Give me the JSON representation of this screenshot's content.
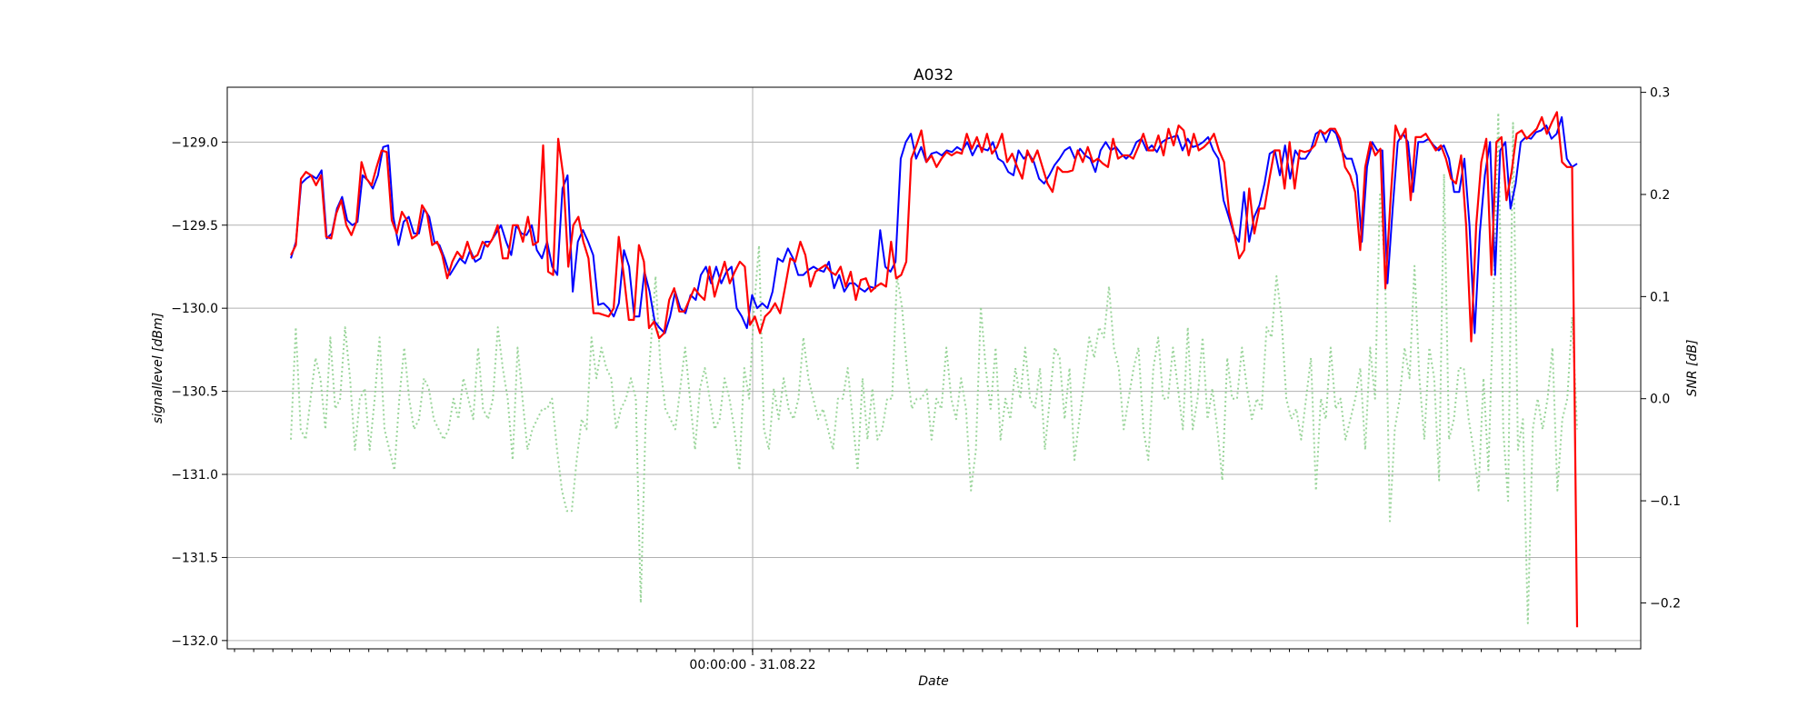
{
  "chart_data": {
    "type": "line",
    "title": "A032",
    "xlabel": "Date",
    "ylabel": "signallevel [dBm]",
    "ylabel_right": "SNR [dB]",
    "x_tick_label": "00:00:00 - 31.08.22",
    "ylim": [
      -132.05,
      -128.67
    ],
    "ylim_right": [
      -0.245,
      0.305
    ],
    "y_ticks": [
      -132.0,
      -131.5,
      -131.0,
      -130.5,
      -130.0,
      -129.5,
      -129.0
    ],
    "y_ticks_right": [
      -0.2,
      -0.1,
      0.0,
      0.1,
      0.2,
      0.3
    ],
    "grid": true,
    "colors": {
      "series_blue": "#0000ff",
      "series_red": "#ff0000",
      "series_snr": "#90d090",
      "grid": "#b0b0b0"
    },
    "series": [
      {
        "key": "blue",
        "values": [
          -129.7,
          -129.6,
          -129.25,
          -129.22,
          -129.2,
          -129.22,
          -129.17,
          -129.58,
          -129.55,
          -129.4,
          -129.33,
          -129.47,
          -129.5,
          -129.48,
          -129.2,
          -129.23,
          -129.28,
          -129.2,
          -129.03,
          -129.02,
          -129.45,
          -129.62,
          -129.48,
          -129.45,
          -129.55,
          -129.55,
          -129.4,
          -129.45,
          -129.6,
          -129.62,
          -129.7,
          -129.8,
          -129.75,
          -129.7,
          -129.73,
          -129.65,
          -129.72,
          -129.7,
          -129.6,
          -129.6,
          -129.55,
          -129.5,
          -129.6,
          -129.68,
          -129.5,
          -129.55,
          -129.56,
          -129.5,
          -129.65,
          -129.7,
          -129.6,
          -129.75,
          -129.8,
          -129.28,
          -129.2,
          -129.9,
          -129.6,
          -129.53,
          -129.6,
          -129.68,
          -129.98,
          -129.97,
          -130.0,
          -130.05,
          -129.97,
          -129.65,
          -129.75,
          -130.05,
          -130.05,
          -129.78,
          -129.9,
          -130.08,
          -130.12,
          -130.15,
          -130.05,
          -129.9,
          -130.0,
          -130.03,
          -129.92,
          -129.95,
          -129.8,
          -129.75,
          -129.85,
          -129.75,
          -129.85,
          -129.78,
          -129.75,
          -130.0,
          -130.05,
          -130.12,
          -129.92,
          -130.0,
          -129.97,
          -130.0,
          -129.9,
          -129.7,
          -129.72,
          -129.64,
          -129.7,
          -129.8,
          -129.8,
          -129.77,
          -129.75,
          -129.77,
          -129.78,
          -129.72,
          -129.88,
          -129.8,
          -129.9,
          -129.85,
          -129.85,
          -129.88,
          -129.9,
          -129.87,
          -129.88,
          -129.53,
          -129.75,
          -129.78,
          -129.72,
          -129.1,
          -129.0,
          -128.95,
          -129.1,
          -129.03,
          -129.12,
          -129.07,
          -129.06,
          -129.08,
          -129.05,
          -129.06,
          -129.03,
          -129.05,
          -129.0,
          -129.08,
          -129.02,
          -129.04,
          -129.05,
          -129.0,
          -129.1,
          -129.12,
          -129.18,
          -129.2,
          -129.05,
          -129.1,
          -129.07,
          -129.12,
          -129.22,
          -129.25,
          -129.2,
          -129.14,
          -129.1,
          -129.05,
          -129.03,
          -129.1,
          -129.04,
          -129.08,
          -129.1,
          -129.18,
          -129.05,
          -129.0,
          -129.05,
          -129.03,
          -129.07,
          -129.1,
          -129.07,
          -129.0,
          -128.98,
          -129.05,
          -129.02,
          -129.06,
          -129.0,
          -128.98,
          -128.97,
          -128.96,
          -129.05,
          -128.98,
          -129.03,
          -129.02,
          -129.0,
          -128.97,
          -129.05,
          -129.1,
          -129.35,
          -129.45,
          -129.55,
          -129.6,
          -129.3,
          -129.6,
          -129.45,
          -129.38,
          -129.25,
          -129.07,
          -129.05,
          -129.2,
          -129.02,
          -129.22,
          -129.05,
          -129.1,
          -129.1,
          -129.05,
          -128.95,
          -128.93,
          -129.0,
          -128.92,
          -128.95,
          -129.05,
          -129.1,
          -129.1,
          -129.2,
          -129.6,
          -129.15,
          -129.0,
          -129.05,
          -129.05,
          -129.85,
          -129.4,
          -129.0,
          -128.95,
          -129.0,
          -129.3,
          -129.0,
          -129.0,
          -128.98,
          -129.02,
          -129.05,
          -129.02,
          -129.1,
          -129.3,
          -129.3,
          -129.1,
          -129.5,
          -130.15,
          -129.55,
          -129.2,
          -129.0,
          -129.8,
          -129.05,
          -129.0,
          -129.4,
          -129.25,
          -129.0,
          -128.97,
          -128.98,
          -128.94,
          -128.93,
          -128.9,
          -128.98,
          -128.95,
          -128.85,
          -129.1,
          -129.15,
          -129.13
        ]
      },
      {
        "key": "red",
        "values": [
          -129.68,
          -129.62,
          -129.22,
          -129.18,
          -129.2,
          -129.26,
          -129.2,
          -129.57,
          -129.58,
          -129.43,
          -129.35,
          -129.5,
          -129.56,
          -129.48,
          -129.12,
          -129.22,
          -129.26,
          -129.15,
          -129.05,
          -129.06,
          -129.47,
          -129.55,
          -129.42,
          -129.47,
          -129.58,
          -129.56,
          -129.38,
          -129.43,
          -129.62,
          -129.6,
          -129.68,
          -129.82,
          -129.72,
          -129.66,
          -129.7,
          -129.6,
          -129.7,
          -129.68,
          -129.6,
          -129.63,
          -129.58,
          -129.5,
          -129.7,
          -129.7,
          -129.5,
          -129.5,
          -129.6,
          -129.45,
          -129.62,
          -129.6,
          -129.02,
          -129.78,
          -129.8,
          -128.98,
          -129.2,
          -129.75,
          -129.5,
          -129.45,
          -129.6,
          -129.7,
          -130.03,
          -130.03,
          -130.04,
          -130.05,
          -130.0,
          -129.57,
          -129.8,
          -130.07,
          -130.07,
          -129.62,
          -129.72,
          -130.12,
          -130.08,
          -130.18,
          -130.15,
          -129.95,
          -129.88,
          -130.02,
          -130.02,
          -129.95,
          -129.88,
          -129.92,
          -129.95,
          -129.75,
          -129.93,
          -129.82,
          -129.72,
          -129.85,
          -129.78,
          -129.72,
          -129.75,
          -130.1,
          -130.05,
          -130.15,
          -130.05,
          -130.02,
          -129.97,
          -130.03,
          -129.87,
          -129.7,
          -129.72,
          -129.6,
          -129.68,
          -129.87,
          -129.78,
          -129.76,
          -129.74,
          -129.78,
          -129.8,
          -129.75,
          -129.87,
          -129.78,
          -129.95,
          -129.83,
          -129.82,
          -129.9,
          -129.87,
          -129.85,
          -129.87,
          -129.6,
          -129.82,
          -129.8,
          -129.72,
          -129.1,
          -129.02,
          -128.93,
          -129.12,
          -129.08,
          -129.15,
          -129.1,
          -129.06,
          -129.08,
          -129.06,
          -129.07,
          -128.95,
          -129.04,
          -128.97,
          -129.06,
          -128.95,
          -129.07,
          -129.03,
          -128.95,
          -129.12,
          -129.07,
          -129.15,
          -129.22,
          -129.05,
          -129.12,
          -129.05,
          -129.15,
          -129.25,
          -129.3,
          -129.15,
          -129.18,
          -129.18,
          -129.17,
          -129.05,
          -129.12,
          -129.03,
          -129.12,
          -129.1,
          -129.13,
          -129.15,
          -128.98,
          -129.1,
          -129.08,
          -129.08,
          -129.1,
          -129.03,
          -128.95,
          -129.05,
          -129.05,
          -128.96,
          -129.08,
          -128.92,
          -129.02,
          -128.9,
          -128.93,
          -129.08,
          -128.95,
          -129.05,
          -129.03,
          -129.0,
          -128.95,
          -129.05,
          -129.12,
          -129.42,
          -129.55,
          -129.7,
          -129.65,
          -129.28,
          -129.55,
          -129.4,
          -129.4,
          -129.22,
          -129.05,
          -129.05,
          -129.28,
          -129.0,
          -129.28,
          -129.05,
          -129.06,
          -129.05,
          -129.02,
          -128.93,
          -128.95,
          -128.92,
          -128.92,
          -128.98,
          -129.15,
          -129.2,
          -129.3,
          -129.65,
          -129.15,
          -129.0,
          -129.08,
          -129.04,
          -129.88,
          -129.35,
          -128.9,
          -128.98,
          -128.92,
          -129.35,
          -128.97,
          -128.97,
          -128.95,
          -129.0,
          -129.05,
          -129.02,
          -129.1,
          -129.22,
          -129.25,
          -129.08,
          -129.5,
          -130.2,
          -129.5,
          -129.12,
          -128.98,
          -129.8,
          -129.0,
          -128.97,
          -129.35,
          -129.18,
          -128.95,
          -128.93,
          -128.98,
          -128.95,
          -128.92,
          -128.85,
          -128.95,
          -128.88,
          -128.82,
          -129.12,
          -129.15,
          -129.15,
          -131.92
        ]
      },
      {
        "key": "snr",
        "values": [
          -0.04,
          0.07,
          -0.03,
          -0.04,
          0.0,
          0.04,
          0.02,
          -0.03,
          0.06,
          -0.01,
          0.0,
          0.07,
          0.02,
          -0.05,
          0.0,
          0.01,
          -0.05,
          0.0,
          0.06,
          -0.03,
          -0.05,
          -0.07,
          0.0,
          0.05,
          0.0,
          -0.03,
          -0.02,
          0.02,
          0.01,
          -0.02,
          -0.03,
          -0.04,
          -0.03,
          0.0,
          -0.02,
          0.02,
          0.0,
          -0.02,
          0.05,
          -0.01,
          -0.02,
          0.0,
          0.07,
          0.03,
          0.0,
          -0.06,
          0.05,
          0.0,
          -0.05,
          -0.03,
          -0.02,
          -0.01,
          -0.01,
          0.0,
          -0.05,
          -0.09,
          -0.11,
          -0.11,
          -0.06,
          -0.02,
          -0.03,
          0.06,
          0.02,
          0.05,
          0.03,
          0.02,
          -0.03,
          -0.01,
          0.0,
          0.02,
          0.0,
          -0.2,
          -0.02,
          0.05,
          0.12,
          0.03,
          -0.01,
          -0.02,
          -0.03,
          0.01,
          0.05,
          0.0,
          -0.05,
          0.01,
          0.03,
          0.0,
          -0.03,
          -0.02,
          0.02,
          0.0,
          -0.03,
          -0.07,
          0.03,
          0.0,
          0.09,
          0.15,
          -0.03,
          -0.05,
          0.01,
          -0.02,
          0.02,
          -0.01,
          -0.02,
          0.0,
          0.06,
          0.02,
          0.0,
          -0.02,
          -0.01,
          -0.03,
          -0.05,
          0.0,
          0.0,
          0.03,
          -0.02,
          -0.07,
          0.02,
          -0.04,
          0.01,
          -0.04,
          -0.03,
          0.0,
          0.0,
          0.12,
          0.09,
          0.03,
          -0.01,
          0.0,
          0.0,
          0.01,
          -0.04,
          0.0,
          -0.01,
          0.05,
          0.0,
          -0.02,
          0.02,
          -0.01,
          -0.09,
          -0.05,
          0.09,
          0.03,
          -0.01,
          0.05,
          -0.04,
          0.0,
          -0.02,
          0.03,
          0.0,
          0.05,
          0.0,
          -0.01,
          0.03,
          -0.05,
          0.0,
          0.05,
          0.04,
          -0.02,
          0.03,
          -0.06,
          -0.02,
          0.02,
          0.06,
          0.04,
          0.07,
          0.06,
          0.11,
          0.05,
          0.03,
          -0.03,
          0.0,
          0.03,
          0.05,
          -0.03,
          -0.06,
          0.03,
          0.06,
          0.0,
          0.0,
          0.05,
          0.01,
          -0.03,
          0.07,
          -0.03,
          0.0,
          0.06,
          -0.02,
          0.01,
          -0.03,
          -0.08,
          0.04,
          0.0,
          0.0,
          0.05,
          0.01,
          -0.02,
          0.0,
          -0.01,
          0.07,
          0.06,
          0.12,
          0.08,
          0.0,
          -0.02,
          -0.01,
          -0.04,
          0.0,
          0.04,
          -0.09,
          0.0,
          -0.02,
          0.05,
          -0.01,
          0.0,
          -0.04,
          -0.02,
          0.0,
          0.03,
          -0.05,
          0.05,
          0.0,
          0.2,
          0.13,
          -0.12,
          -0.03,
          0.0,
          0.05,
          0.02,
          0.13,
          0.02,
          -0.04,
          0.05,
          0.02,
          -0.08,
          0.22,
          -0.04,
          -0.02,
          0.03,
          0.03,
          -0.02,
          -0.05,
          -0.09,
          0.02,
          -0.07,
          0.09,
          0.28,
          -0.03,
          -0.1,
          0.27,
          -0.05,
          -0.02,
          -0.22,
          -0.03,
          0.0,
          -0.03,
          0.0,
          0.05,
          -0.09,
          -0.02,
          0.0,
          0.08,
          -0.03
        ]
      }
    ]
  }
}
